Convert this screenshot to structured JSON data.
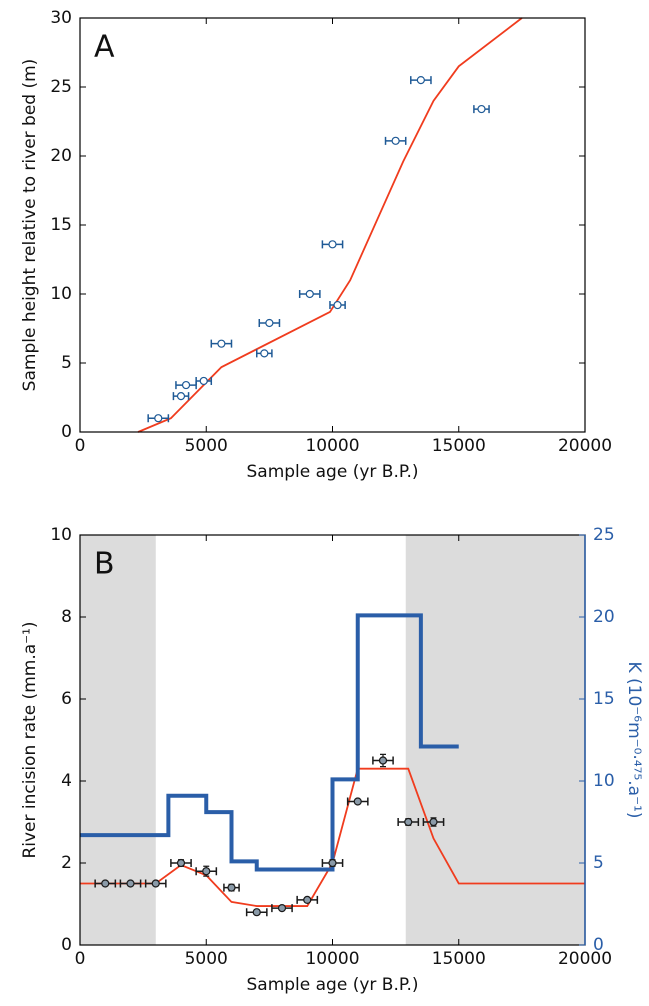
{
  "chart_data": [
    {
      "type": "scatter",
      "label": "A",
      "xlabel": "Sample age (yr B.P.)",
      "ylabel": "Sample height relative to river bed (m)",
      "xlim": [
        0,
        20000
      ],
      "xticks": [
        0,
        5000,
        10000,
        15000,
        20000
      ],
      "ylim": [
        0,
        30
      ],
      "yticks": [
        0,
        5,
        10,
        15,
        20,
        25,
        30
      ],
      "points": {
        "color": "#1f5a96",
        "fill": "#ffffff",
        "x": [
          3100,
          4000,
          4200,
          4900,
          5600,
          7300,
          7500,
          9100,
          10200,
          10000,
          12500,
          13500,
          15900
        ],
        "y": [
          1.0,
          2.6,
          3.4,
          3.7,
          6.4,
          5.7,
          7.9,
          10.0,
          9.2,
          13.6,
          21.1,
          25.5,
          23.4
        ],
        "xerr": [
          400,
          300,
          400,
          300,
          400,
          300,
          400,
          400,
          300,
          400,
          400,
          400,
          300
        ]
      },
      "lines": [
        {
          "color": "#f03c1e",
          "width": 1.8,
          "x": [
            2300,
            3600,
            5600,
            9900,
            10700,
            12800,
            14000,
            15000,
            17500
          ],
          "y": [
            0,
            1,
            4.7,
            8.7,
            11,
            19.6,
            24,
            26.5,
            30
          ]
        }
      ]
    },
    {
      "type": "scatter",
      "label": "B",
      "xlabel": "Sample age (yr B.P.)",
      "ylabel": "River incision rate (mm.a⁻¹)",
      "y2label": "K (10⁻⁶m⁻⁰·⁴⁷⁵.a⁻¹)",
      "y2color": "#2a5ea8",
      "xlim": [
        0,
        20000
      ],
      "xticks": [
        0,
        5000,
        10000,
        15000,
        20000
      ],
      "ylim": [
        0,
        10
      ],
      "yticks": [
        0,
        2,
        4,
        6,
        8,
        10
      ],
      "y2lim": [
        0,
        25
      ],
      "y2ticks": [
        0,
        5,
        10,
        15,
        20,
        25
      ],
      "shaded": {
        "color": "#dcdcdc",
        "ranges": [
          [
            0,
            3000
          ],
          [
            12900,
            20000
          ]
        ]
      },
      "lines": [
        {
          "color": "#f03c1e",
          "width": 1.8,
          "x": [
            0,
            3000,
            4000,
            5000,
            6000,
            7000,
            9000,
            10000,
            11000,
            13000,
            14000,
            15000,
            20000
          ],
          "y": [
            1.5,
            1.5,
            1.95,
            1.7,
            1.05,
            0.95,
            0.95,
            2.0,
            4.3,
            4.3,
            2.6,
            1.5,
            1.5
          ]
        },
        {
          "color": "#2a5ea8",
          "width": 4,
          "axis": "y2",
          "x": [
            0,
            3500,
            3500,
            5000,
            5000,
            6000,
            6000,
            7000,
            7000,
            10000,
            10000,
            11000,
            11000,
            13500,
            13500,
            15000
          ],
          "y": [
            6.7,
            6.7,
            9.1,
            9.1,
            8.1,
            8.1,
            5.1,
            5.1,
            4.6,
            4.6,
            10.1,
            10.1,
            20.1,
            20.1,
            12.1,
            12.1
          ]
        }
      ],
      "points": {
        "color": "#1a1a1a",
        "fill": "#8a9aa8",
        "x": [
          1000,
          2000,
          3000,
          4000,
          5000,
          6000,
          7000,
          8000,
          9000,
          10000,
          11000,
          12000,
          13000,
          14000
        ],
        "y": [
          1.5,
          1.5,
          1.5,
          2.0,
          1.8,
          1.4,
          0.8,
          0.9,
          1.1,
          2.0,
          3.5,
          4.5,
          3.0,
          3.0
        ],
        "xerr": [
          400,
          400,
          400,
          400,
          400,
          300,
          400,
          400,
          400,
          400,
          400,
          400,
          400,
          400
        ],
        "yerr": [
          0.05,
          0.05,
          0.05,
          0.08,
          0.12,
          0.08,
          0.05,
          0.05,
          0.05,
          0.08,
          0.05,
          0.15,
          0.08,
          0.1
        ]
      }
    }
  ]
}
